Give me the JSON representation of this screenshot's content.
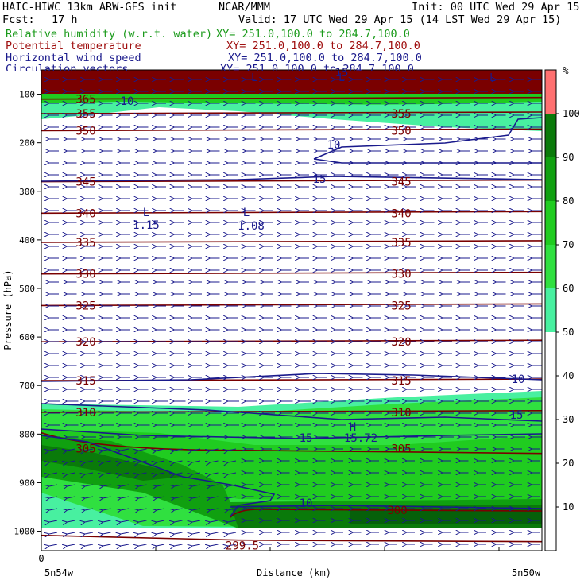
{
  "header": {
    "model": "HAIC-HIWC 13km ARW-GFS init",
    "org": "NCAR/MMM",
    "init": "Init: 00 UTC Wed 29 Apr 15",
    "fcst_label": "Fcst:",
    "fcst_value": "17 h",
    "valid": "Valid: 17 UTC Wed 29 Apr 15 (14 LST Wed 29 Apr 15)"
  },
  "fields": [
    {
      "name": "Relative humidity (w.r.t. water)",
      "xy": "XY= 251.0,100.0 to 284.7,100.0",
      "color": "#1a9a1a"
    },
    {
      "name": "Potential temperature",
      "xy": "XY= 251.0,100.0 to 284.7,100.0",
      "color": "#a01010"
    },
    {
      "name": "Horizontal wind speed",
      "xy": "XY= 251.0,100.0 to 284.7,100.0",
      "color": "#1a1a8c"
    },
    {
      "name": "Circulation vectors",
      "xy": "XY= 251.0,100.0 to 284.7,100.0",
      "color": "#1a1a8c"
    }
  ],
  "chart_data": {
    "type": "heatmap",
    "ylabel": "Pressure (hPa)",
    "xlabel": "Distance (km)",
    "x_tick_label": "0",
    "x_left_label": "5n54w",
    "x_right_label": "5n50w",
    "yticks": [
      100,
      200,
      300,
      400,
      500,
      600,
      700,
      800,
      900,
      1000
    ],
    "ylim": [
      1040,
      50
    ],
    "colorbar": {
      "unit": "%",
      "levels": [
        10,
        20,
        30,
        40,
        50,
        60,
        70,
        80,
        90,
        100
      ],
      "colors": [
        "#ffffff",
        "#ffffff",
        "#ffffff",
        "#ffffff",
        "#ffffff",
        "#48f0a0",
        "#30e040",
        "#20cc20",
        "#10a010",
        "#0a7a0a",
        "#ff7070"
      ]
    },
    "theta_isentropes": [
      {
        "label": "299.5",
        "pressure": 1015
      },
      {
        "label": "300",
        "pressure": 955
      },
      {
        "label": "305",
        "pressure": 830
      },
      {
        "label": "310",
        "pressure": 755
      },
      {
        "label": "315",
        "pressure": 690
      },
      {
        "label": "320",
        "pressure": 610
      },
      {
        "label": "325",
        "pressure": 535
      },
      {
        "label": "330",
        "pressure": 470
      },
      {
        "label": "335",
        "pressure": 405
      },
      {
        "label": "340",
        "pressure": 345
      },
      {
        "label": "345",
        "pressure": 280
      },
      {
        "label": "350",
        "pressure": 175
      },
      {
        "label": "355",
        "pressure": 140
      },
      {
        "label": "365",
        "pressure": 110
      }
    ],
    "wind_speed_labels": [
      "10",
      "15",
      "15",
      "10",
      "15",
      "10",
      "10",
      "15"
    ],
    "extrema": [
      {
        "type": "L",
        "value": "1.15"
      },
      {
        "type": "L",
        "value": "1.08"
      },
      {
        "type": "H",
        "value": "15.72"
      }
    ],
    "top_L_markers": [
      "L",
      "L",
      "L"
    ]
  }
}
